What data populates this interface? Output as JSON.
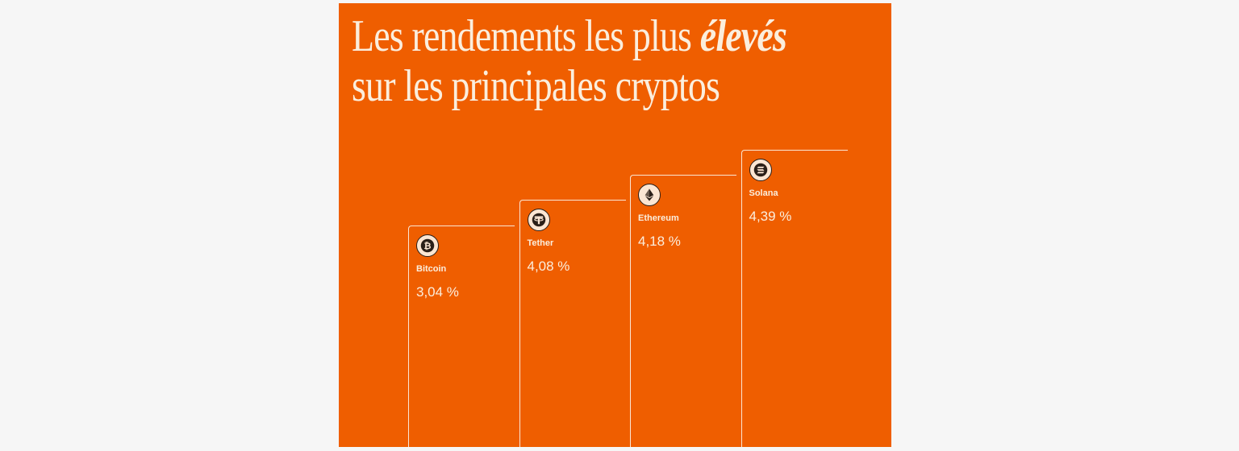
{
  "headline": {
    "line1_prefix": "Les rendements les plus ",
    "line1_emphasis": "élevés",
    "line2": "sur les principales cryptos"
  },
  "colors": {
    "panel_background": "#ef5e00",
    "text": "#fbeedd",
    "page_background": "#f6f6f6"
  },
  "chart_data": {
    "type": "bar",
    "title": "Les rendements les plus élevés sur les principales cryptos",
    "categories": [
      "Bitcoin",
      "Tether",
      "Ethereum",
      "Solana"
    ],
    "values": [
      3.04,
      4.08,
      4.18,
      4.39
    ],
    "labels": [
      "3,04 %",
      "4,08 %",
      "4,18 %",
      "4,39 %"
    ],
    "icons": [
      "bitcoin-icon",
      "tether-icon",
      "ethereum-icon",
      "solana-icon"
    ],
    "unit": "%",
    "xlabel": "",
    "ylabel": ""
  }
}
